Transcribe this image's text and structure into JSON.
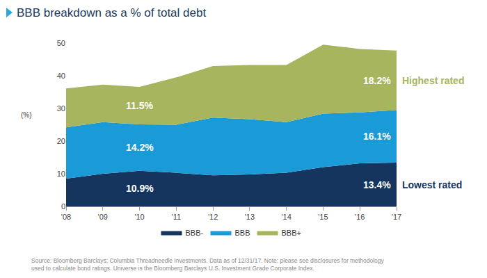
{
  "chart_data": {
    "type": "area",
    "title": "BBB breakdown as a % of total debt",
    "ylabel": "(%)",
    "categories": [
      "'08",
      "'09",
      "'10",
      "'11",
      "'12",
      "'13",
      "'14",
      "'15",
      "'16",
      "'17"
    ],
    "stacked": true,
    "grid": false,
    "legend": "bottom",
    "data_labels": true,
    "series": [
      {
        "name": "BBB-",
        "color": "#15355e",
        "values": [
          8.5,
          10.0,
          10.9,
          10.3,
          9.5,
          9.8,
          10.3,
          12.0,
          13.2,
          13.4
        ],
        "value_labels": [
          null,
          null,
          "10.9%",
          null,
          null,
          null,
          null,
          null,
          null,
          "13.4%"
        ]
      },
      {
        "name": "BBB",
        "color": "#1a9ad6",
        "values": [
          15.7,
          15.8,
          14.2,
          14.7,
          17.7,
          16.9,
          15.5,
          16.4,
          15.6,
          16.1
        ],
        "value_labels": [
          null,
          null,
          "14.2%",
          null,
          null,
          null,
          null,
          null,
          null,
          "16.1%"
        ]
      },
      {
        "name": "BBB+",
        "color": "#a7b55e",
        "values": [
          11.9,
          11.5,
          11.5,
          14.5,
          15.8,
          16.6,
          17.5,
          21.1,
          19.4,
          18.2
        ],
        "value_labels": [
          null,
          null,
          "11.5%",
          null,
          null,
          null,
          null,
          null,
          null,
          "18.2%"
        ]
      }
    ],
    "annotations": [
      {
        "text": "Highest rated",
        "series": "BBB+"
      },
      {
        "text": "Lowest rated",
        "series": "BBB-"
      }
    ],
    "source": [
      "Source: Bloomberg Barclays; Columbia Threadneedle Investments. Data as of 12/31/17. Note: please see disclosures for methodology",
      "used to calculate bond ratings. Universe is the Bloomberg Barclays U.S. Investment Grade Corporate Index."
    ],
    "ylim": [
      0,
      50
    ],
    "yticks": [
      0,
      10,
      20,
      30,
      40,
      50
    ]
  }
}
